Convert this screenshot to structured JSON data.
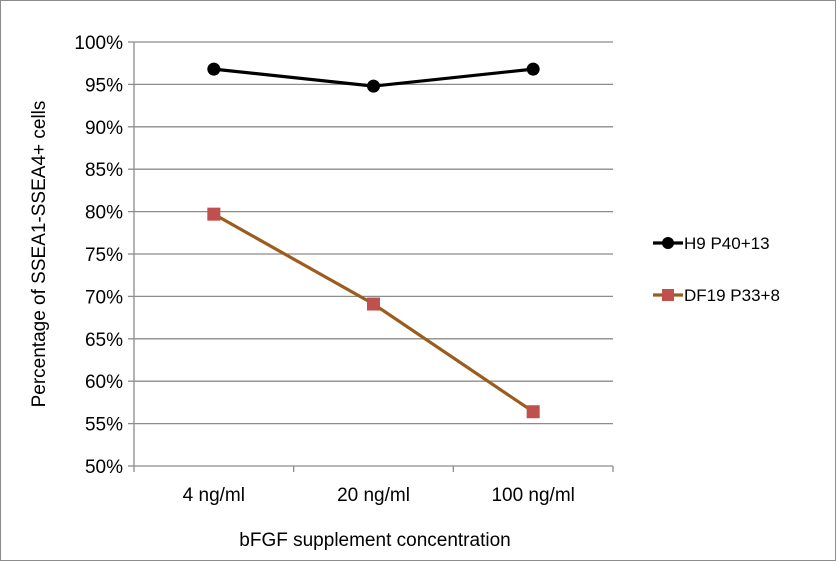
{
  "chart_data": {
    "type": "line",
    "xlabel": "bFGF supplement concentration",
    "ylabel": "Percentage of SSEA1-SSEA4+ cells",
    "categories": [
      "4 ng/ml",
      "20 ng/ml",
      "100 ng/ml"
    ],
    "ylim": [
      50,
      100
    ],
    "ytick_step": 5,
    "ytick_suffix": "%",
    "grid": true,
    "legend_position": "right",
    "series": [
      {
        "name": "H9 P40+13",
        "values": [
          96.8,
          94.8,
          96.8
        ],
        "color": "#000000",
        "marker": "circle"
      },
      {
        "name": "DF19 P33+8",
        "values": [
          79.7,
          69.1,
          56.4
        ],
        "color": "#9c5c1c",
        "marker_color": "#c0504d",
        "marker": "square"
      }
    ]
  }
}
